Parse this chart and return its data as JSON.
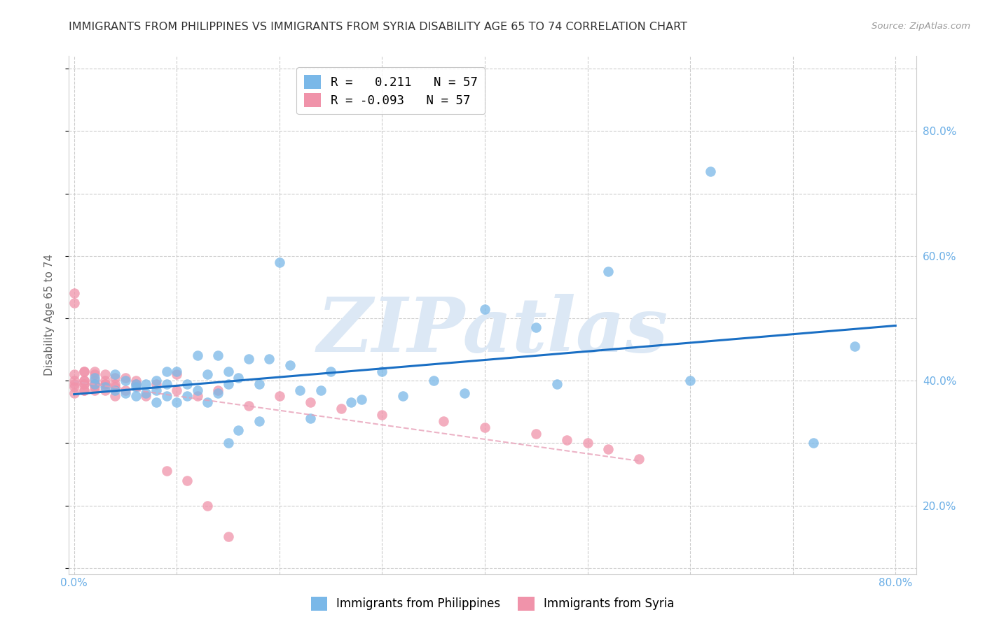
{
  "title": "IMMIGRANTS FROM PHILIPPINES VS IMMIGRANTS FROM SYRIA DISABILITY AGE 65 TO 74 CORRELATION CHART",
  "source": "Source: ZipAtlas.com",
  "ylabel": "Disability Age 65 to 74",
  "x_ticks": [
    0.0,
    0.1,
    0.2,
    0.3,
    0.4,
    0.5,
    0.6,
    0.7,
    0.8
  ],
  "y_ticks": [
    0.0,
    0.1,
    0.2,
    0.3,
    0.4,
    0.5,
    0.6,
    0.7,
    0.8
  ],
  "x_tick_labels": [
    "0.0%",
    "",
    "",
    "",
    "",
    "",
    "",
    "",
    "80.0%"
  ],
  "y_tick_labels_right": [
    "",
    "20.0%",
    "",
    "40.0%",
    "",
    "60.0%",
    "",
    "80.0%",
    ""
  ],
  "xlim": [
    -0.005,
    0.82
  ],
  "ylim": [
    -0.01,
    0.82
  ],
  "phil_color": "#7ab8e8",
  "syria_color": "#f093aa",
  "phil_line_color": "#1a6fc4",
  "syria_line_color": "#e8a0b8",
  "watermark": "ZIPatlas",
  "watermark_color": "#dce8f5",
  "phil_scatter_x": [
    0.02,
    0.02,
    0.03,
    0.04,
    0.04,
    0.05,
    0.05,
    0.06,
    0.06,
    0.06,
    0.07,
    0.07,
    0.08,
    0.08,
    0.08,
    0.09,
    0.09,
    0.09,
    0.1,
    0.1,
    0.11,
    0.11,
    0.12,
    0.12,
    0.13,
    0.13,
    0.14,
    0.14,
    0.15,
    0.15,
    0.15,
    0.16,
    0.16,
    0.17,
    0.18,
    0.18,
    0.19,
    0.2,
    0.21,
    0.22,
    0.23,
    0.24,
    0.25,
    0.27,
    0.28,
    0.3,
    0.32,
    0.35,
    0.38,
    0.4,
    0.45,
    0.47,
    0.52,
    0.6,
    0.62,
    0.72,
    0.76
  ],
  "phil_scatter_y": [
    0.295,
    0.305,
    0.29,
    0.285,
    0.31,
    0.28,
    0.3,
    0.275,
    0.29,
    0.295,
    0.28,
    0.295,
    0.265,
    0.285,
    0.3,
    0.275,
    0.295,
    0.315,
    0.265,
    0.315,
    0.275,
    0.295,
    0.285,
    0.34,
    0.265,
    0.31,
    0.34,
    0.28,
    0.315,
    0.2,
    0.295,
    0.22,
    0.305,
    0.335,
    0.235,
    0.295,
    0.335,
    0.49,
    0.325,
    0.285,
    0.24,
    0.285,
    0.315,
    0.265,
    0.27,
    0.315,
    0.275,
    0.3,
    0.28,
    0.415,
    0.385,
    0.295,
    0.475,
    0.3,
    0.635,
    0.2,
    0.355
  ],
  "syria_scatter_x": [
    0.0,
    0.0,
    0.0,
    0.0,
    0.0,
    0.0,
    0.0,
    0.01,
    0.01,
    0.01,
    0.01,
    0.01,
    0.01,
    0.01,
    0.01,
    0.02,
    0.02,
    0.02,
    0.02,
    0.02,
    0.02,
    0.02,
    0.03,
    0.03,
    0.03,
    0.03,
    0.03,
    0.04,
    0.04,
    0.04,
    0.04,
    0.05,
    0.05,
    0.06,
    0.06,
    0.07,
    0.08,
    0.09,
    0.1,
    0.1,
    0.11,
    0.12,
    0.13,
    0.14,
    0.15,
    0.17,
    0.2,
    0.23,
    0.26,
    0.3,
    0.36,
    0.4,
    0.45,
    0.48,
    0.5,
    0.52,
    0.55
  ],
  "syria_scatter_y": [
    0.425,
    0.44,
    0.295,
    0.28,
    0.29,
    0.31,
    0.3,
    0.315,
    0.295,
    0.3,
    0.285,
    0.315,
    0.295,
    0.3,
    0.285,
    0.315,
    0.295,
    0.31,
    0.285,
    0.3,
    0.29,
    0.295,
    0.295,
    0.31,
    0.285,
    0.3,
    0.295,
    0.295,
    0.305,
    0.275,
    0.29,
    0.305,
    0.285,
    0.295,
    0.3,
    0.275,
    0.295,
    0.155,
    0.31,
    0.285,
    0.14,
    0.275,
    0.1,
    0.285,
    0.05,
    0.26,
    0.275,
    0.265,
    0.255,
    0.245,
    0.235,
    0.225,
    0.215,
    0.205,
    0.2,
    0.19,
    0.175
  ],
  "background_color": "#ffffff",
  "grid_color": "#cccccc",
  "tick_color": "#6aaee6",
  "title_color": "#333333",
  "title_fontsize": 11.5,
  "axis_label_color": "#666666",
  "legend_phil_label": "R =   0.211   N = 57",
  "legend_syria_label": "R = -0.093   N = 57",
  "bottom_legend_phil": "Immigrants from Philippines",
  "bottom_legend_syria": "Immigrants from Syria"
}
